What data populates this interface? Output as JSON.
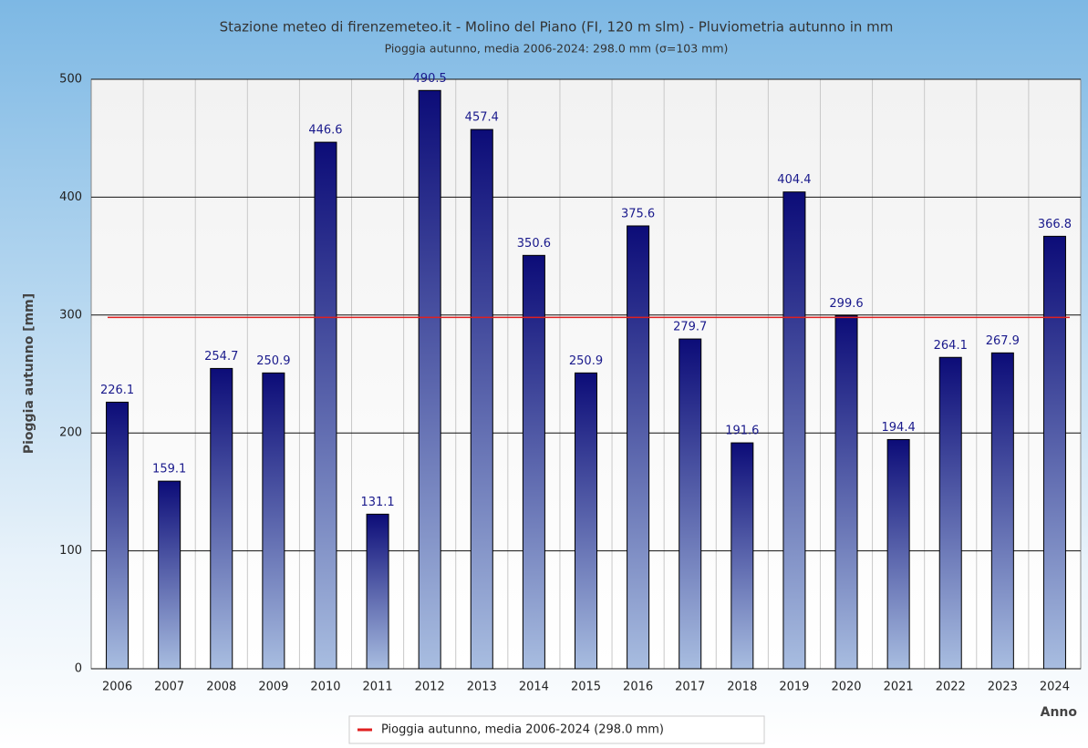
{
  "chart_data": {
    "type": "bar",
    "title": "Stazione meteo di firenzemeteo.it - Molino del Piano (FI, 120 m slm) - Pluviometria autunno in mm",
    "subtitle": "Pioggia autunno, media 2006-2024: 298.0 mm (σ=103 mm)",
    "y_label": "Pioggia autunno [mm]",
    "x_label": "Anno",
    "categories": [
      "2006",
      "2007",
      "2008",
      "2009",
      "2010",
      "2011",
      "2012",
      "2013",
      "2014",
      "2015",
      "2016",
      "2017",
      "2018",
      "2019",
      "2020",
      "2021",
      "2022",
      "2023",
      "2024"
    ],
    "values": [
      226.1,
      159.1,
      254.7,
      250.9,
      446.6,
      131.1,
      490.5,
      457.4,
      350.6,
      250.9,
      375.6,
      279.7,
      191.6,
      404.4,
      299.6,
      194.4,
      264.1,
      267.9,
      366.8
    ],
    "color": "#0c0c78",
    "ylim": [
      0,
      500
    ],
    "yticks": [
      0,
      100,
      200,
      300,
      400,
      500
    ],
    "grid": true,
    "reference_line": {
      "value": 298.0,
      "color": "#e02020",
      "label": "Pioggia autunno, media 2006-2024 (298.0 mm)"
    },
    "legend": "bottom"
  }
}
